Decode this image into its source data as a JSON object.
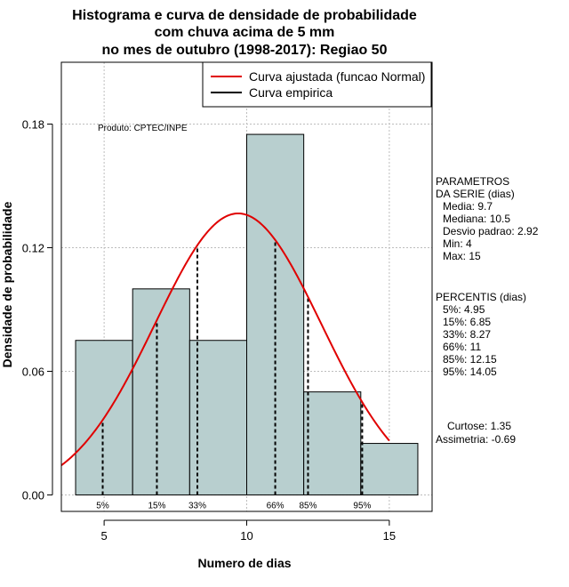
{
  "chart_data": {
    "type": "histogram",
    "title_lines": [
      "Histograma e curva de densidade de probabilidade",
      "com chuva acima de 5 mm",
      "no mes de outubro (1998-2017): Regiao 50"
    ],
    "xlabel": "Numero de dias",
    "ylabel": "Densidade de probabilidade",
    "xlim": [
      3.5,
      16.5
    ],
    "ylim": [
      -0.008,
      0.21
    ],
    "x_ticks": [
      5,
      10,
      15
    ],
    "y_ticks": [
      0.0,
      0.06,
      0.12,
      0.18
    ],
    "y_tick_labels": [
      "0.00",
      "0.06",
      "0.12",
      "0.18"
    ],
    "grid": true,
    "legend_position": "top-right",
    "bins": [
      {
        "start": 4,
        "end": 6,
        "density": 0.075
      },
      {
        "start": 6,
        "end": 8,
        "density": 0.1
      },
      {
        "start": 8,
        "end": 10,
        "density": 0.075
      },
      {
        "start": 10,
        "end": 12,
        "density": 0.175
      },
      {
        "start": 12,
        "end": 14,
        "density": 0.05
      },
      {
        "start": 14,
        "end": 16,
        "density": 0.025
      }
    ],
    "bar_color": "#b8cfcf",
    "normal_fit": {
      "name": "Curva ajustada (funcao Normal)",
      "color": "#e00000",
      "mean": 9.7,
      "sd": 2.92,
      "x_range": [
        3.5,
        15
      ]
    },
    "empirical_curve": {
      "name": "Curva empirica",
      "color": "#000000"
    },
    "percentiles": [
      {
        "label": "5%",
        "x": 4.95
      },
      {
        "label": "15%",
        "x": 6.85
      },
      {
        "label": "33%",
        "x": 8.27
      },
      {
        "label": "66%",
        "x": 11
      },
      {
        "label": "85%",
        "x": 12.15
      },
      {
        "label": "95%",
        "x": 14.05
      }
    ],
    "annotation": "Produto: CPTEC/INPE"
  },
  "side_panel": {
    "params_title": [
      "PARAMETROS",
      "DA SERIE (dias)"
    ],
    "params": [
      "Media: 9.7",
      "Mediana: 10.5",
      "Desvio padrao: 2.92",
      "Min: 4",
      "Max: 15"
    ],
    "percentis_title": "PERCENTIS (dias)",
    "percentis": [
      "5%: 4.95",
      "15%: 6.85",
      "33%: 8.27",
      "66%: 11",
      "85%: 12.15",
      "95%: 14.05"
    ],
    "curtose": "Curtose: 1.35",
    "assimetria": "Assimetria: -0.69"
  }
}
